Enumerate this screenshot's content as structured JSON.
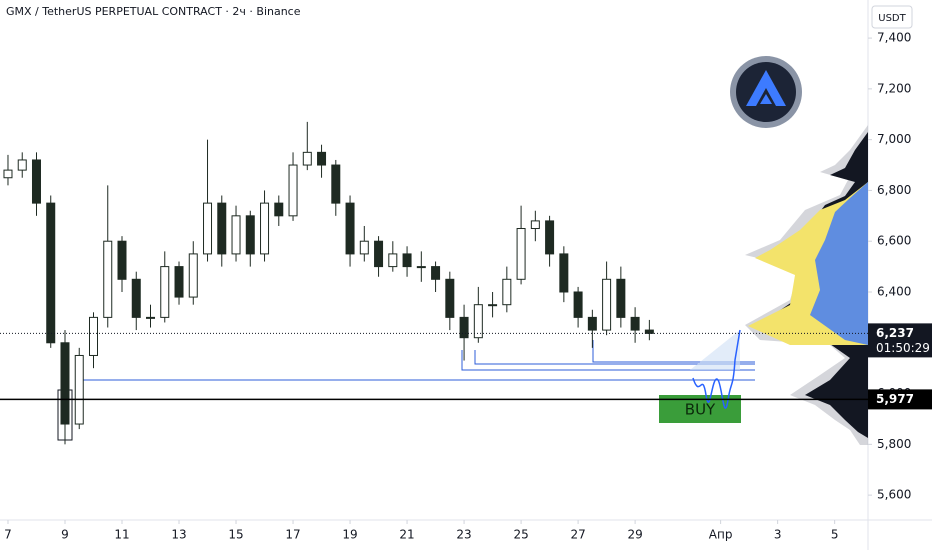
{
  "chart_data": {
    "type": "candlestick",
    "title": "GMX / TetherUS PERPETUAL CONTRACT · 2ч · Binance",
    "currency": "USDT",
    "x": [
      7,
      7.5,
      8,
      8.5,
      9,
      9.5,
      10,
      10.5,
      11,
      11.5,
      12,
      12.5,
      13,
      13.5,
      14,
      14.5,
      15,
      15.5,
      16,
      16.5,
      17,
      17.5,
      18,
      18.5,
      19,
      19.5,
      20,
      20.5,
      21,
      21.5,
      22,
      22.5,
      23,
      23.5,
      24,
      24.5,
      25,
      25.5,
      26,
      26.5,
      27,
      27.5,
      28,
      28.5,
      29,
      29.5
    ],
    "open": [
      6850,
      6880,
      6920,
      6750,
      6200,
      5880,
      6150,
      6300,
      6600,
      6450,
      6300,
      6300,
      6500,
      6380,
      6550,
      6750,
      6550,
      6700,
      6550,
      6750,
      6700,
      6900,
      6950,
      6900,
      6750,
      6550,
      6600,
      6500,
      6550,
      6500,
      6500,
      6450,
      6300,
      6220,
      6350,
      6350,
      6450,
      6650,
      6680,
      6550,
      6400,
      6300,
      6250,
      6450,
      6300,
      6250
    ],
    "high": [
      6940,
      6950,
      6950,
      6780,
      6250,
      6180,
      6320,
      6820,
      6620,
      6480,
      6350,
      6560,
      6520,
      6600,
      7000,
      6780,
      6740,
      6720,
      6800,
      6780,
      6950,
      7070,
      6980,
      6920,
      6780,
      6660,
      6620,
      6600,
      6580,
      6560,
      6520,
      6480,
      6350,
      6420,
      6400,
      6500,
      6740,
      6720,
      6700,
      6580,
      6420,
      6330,
      6520,
      6500,
      6340,
      6290
    ],
    "low": [
      6820,
      6850,
      6700,
      6180,
      5800,
      5860,
      6100,
      6260,
      6400,
      6250,
      6260,
      6280,
      6350,
      6350,
      6520,
      6500,
      6520,
      6500,
      6520,
      6660,
      6680,
      6880,
      6850,
      6700,
      6500,
      6520,
      6460,
      6480,
      6460,
      6440,
      6400,
      6250,
      6130,
      6200,
      6300,
      6320,
      6430,
      6600,
      6500,
      6360,
      6260,
      6180,
      6230,
      6260,
      6200,
      6210
    ],
    "close": [
      6880,
      6920,
      6750,
      6200,
      5880,
      6150,
      6300,
      6600,
      6450,
      6300,
      6300,
      6500,
      6380,
      6550,
      6750,
      6550,
      6700,
      6550,
      6750,
      6700,
      6900,
      6950,
      6900,
      6750,
      6550,
      6600,
      6500,
      6550,
      6500,
      6500,
      6450,
      6300,
      6220,
      6350,
      6350,
      6450,
      6650,
      6680,
      6550,
      6400,
      6300,
      6250,
      6450,
      6300,
      6250,
      6237
    ],
    "up_color": "#ffffff",
    "down_color": "#1e2a22",
    "xlim": [
      6.72,
      37.17
    ],
    "xticks": [
      7,
      9,
      11,
      13,
      15,
      17,
      19,
      21,
      23,
      25,
      27,
      29,
      {
        "value": 32,
        "label": "Апр"
      },
      {
        "value": 34,
        "label": "3"
      },
      {
        "value": 36,
        "label": "5"
      }
    ],
    "ylim": [
      5502,
      7550
    ],
    "yticks": [
      {
        "value": 5600,
        "label": "5,600"
      },
      {
        "value": 5800,
        "label": "5,800"
      },
      {
        "value": 6000,
        "label": "6,000"
      },
      {
        "value": 6200,
        "label": "6,200"
      },
      {
        "value": 6400,
        "label": "6,400"
      },
      {
        "value": 6600,
        "label": "6,600"
      },
      {
        "value": 6800,
        "label": "6,800"
      },
      {
        "value": 7000,
        "label": "7,000"
      },
      {
        "value": 7200,
        "label": "7,200"
      },
      {
        "value": 7400,
        "label": "7,400"
      }
    ],
    "last": {
      "value": 6237,
      "label": "6,237",
      "countdown": "01:50:29"
    },
    "level": {
      "value": 5977,
      "label": "5,977"
    },
    "buy_label": "BUY"
  }
}
